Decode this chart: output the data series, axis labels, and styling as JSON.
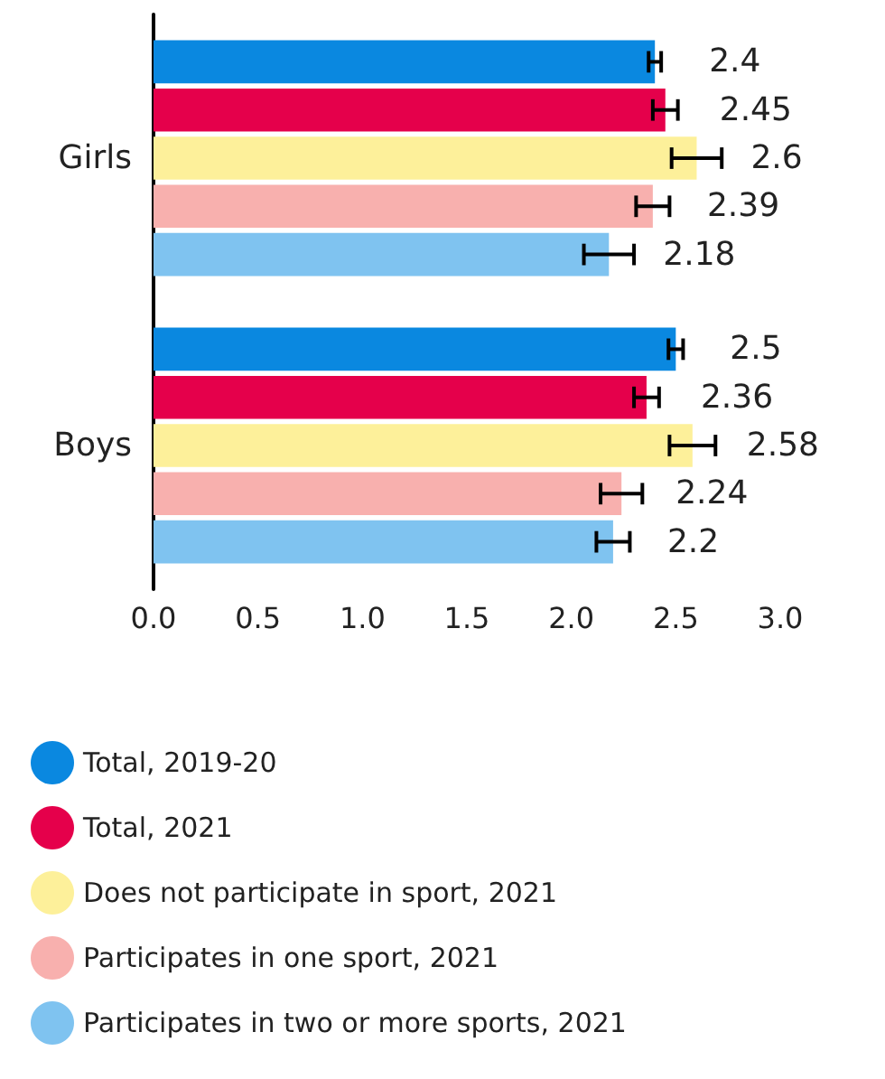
{
  "chart_data": {
    "type": "bar",
    "orientation": "horizontal",
    "categories": [
      "Girls",
      "Boys"
    ],
    "series": [
      {
        "name": "Total, 2019-20",
        "color": "#0a88e0",
        "values": [
          2.4,
          2.5
        ],
        "errors": [
          0.03,
          0.035
        ]
      },
      {
        "name": "Total, 2021",
        "color": "#e5004b",
        "values": [
          2.45,
          2.36
        ],
        "errors": [
          0.06,
          0.06
        ]
      },
      {
        "name": "Does not participate in sport, 2021",
        "color": "#fdf09a",
        "values": [
          2.6,
          2.58
        ],
        "errors": [
          0.12,
          0.11
        ]
      },
      {
        "name": "Participates in one sport, 2021",
        "color": "#f8b0ae",
        "values": [
          2.39,
          2.24
        ],
        "errors": [
          0.08,
          0.1
        ]
      },
      {
        "name": "Participates in two or more sports, 2021",
        "color": "#7fc3f0",
        "values": [
          2.18,
          2.2
        ],
        "errors": [
          0.12,
          0.08
        ]
      }
    ],
    "xlim": [
      0,
      3
    ],
    "xticks": [
      {
        "value": 0,
        "label": "0.0"
      },
      0.5,
      {
        "value": 1,
        "label": "1.0"
      },
      1.5,
      {
        "value": 2,
        "label": "2.0"
      },
      2.5,
      {
        "value": 3,
        "label": "3.0"
      }
    ],
    "data_labels": true,
    "legend": "bottom",
    "grid": false
  }
}
